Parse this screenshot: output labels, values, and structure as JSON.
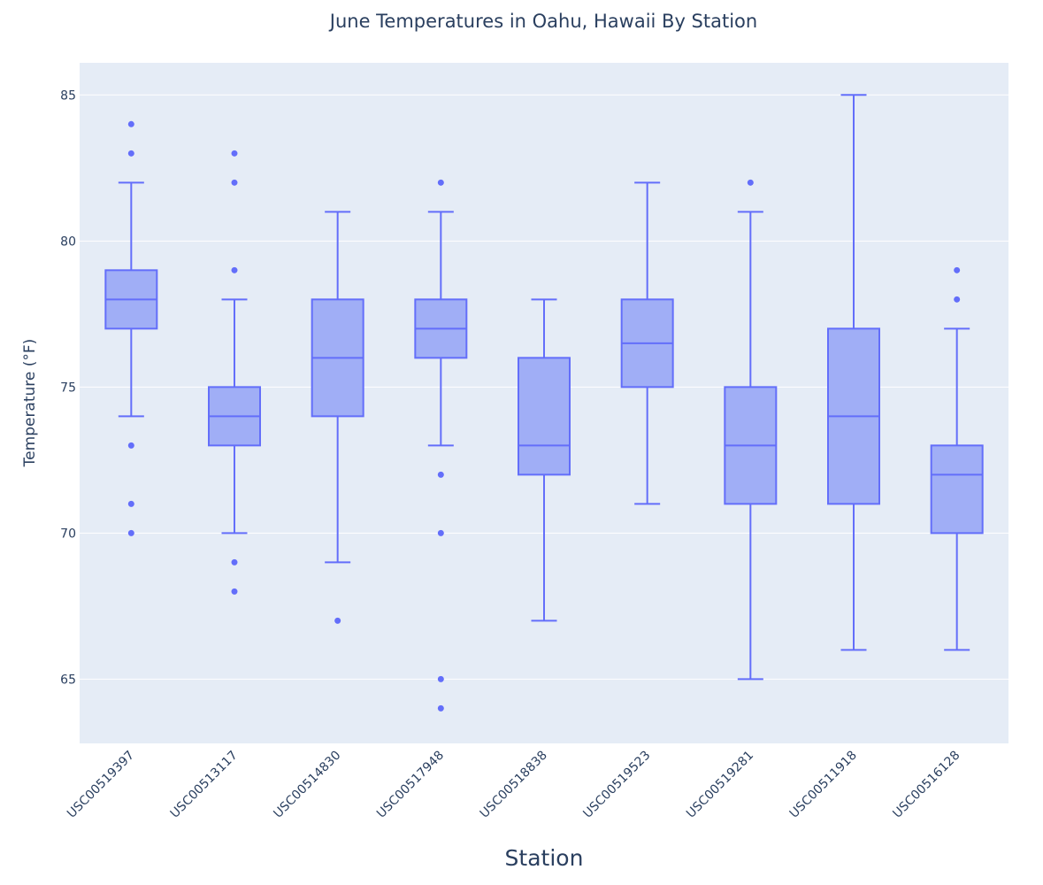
{
  "chart_data": {
    "type": "box",
    "title": "June Temperatures in Oahu, Hawaii By Station",
    "xlabel": "Station",
    "ylabel": "Temperature (°F)",
    "ylim": [
      62.8,
      86.1
    ],
    "yticks": [
      65,
      70,
      75,
      80,
      85
    ],
    "grid": true,
    "colors": {
      "box_line": "#636efa",
      "box_fill": "#a0aef6",
      "plot_bg": "#e5ecf6",
      "grid": "#ffffff",
      "text": "#2a3f5f"
    },
    "categories": [
      "USC00519397",
      "USC00513117",
      "USC00514830",
      "USC00517948",
      "USC00518838",
      "USC00519523",
      "USC00519281",
      "USC00511918",
      "USC00516128"
    ],
    "boxes": [
      {
        "station": "USC00519397",
        "lower_whisker": 74,
        "q1": 77,
        "median": 78,
        "q3": 79,
        "upper_whisker": 82,
        "outliers": [
          84,
          83,
          73,
          71,
          70
        ]
      },
      {
        "station": "USC00513117",
        "lower_whisker": 70,
        "q1": 73,
        "median": 74,
        "q3": 75,
        "upper_whisker": 78,
        "outliers": [
          83,
          82,
          79,
          69,
          68
        ]
      },
      {
        "station": "USC00514830",
        "lower_whisker": 69,
        "q1": 74,
        "median": 76,
        "q3": 78,
        "upper_whisker": 81,
        "outliers": [
          67
        ]
      },
      {
        "station": "USC00517948",
        "lower_whisker": 73,
        "q1": 76,
        "median": 77,
        "q3": 78,
        "upper_whisker": 81,
        "outliers": [
          82,
          72,
          70,
          65,
          64
        ]
      },
      {
        "station": "USC00518838",
        "lower_whisker": 67,
        "q1": 72,
        "median": 73,
        "q3": 76,
        "upper_whisker": 78,
        "outliers": []
      },
      {
        "station": "USC00519523",
        "lower_whisker": 71,
        "q1": 75,
        "median": 76.5,
        "q3": 78,
        "upper_whisker": 82,
        "outliers": []
      },
      {
        "station": "USC00519281",
        "lower_whisker": 65,
        "q1": 71,
        "median": 73,
        "q3": 75,
        "upper_whisker": 81,
        "outliers": [
          82
        ]
      },
      {
        "station": "USC00511918",
        "lower_whisker": 66,
        "q1": 71,
        "median": 74,
        "q3": 77,
        "upper_whisker": 85,
        "outliers": []
      },
      {
        "station": "USC00516128",
        "lower_whisker": 66,
        "q1": 70,
        "median": 72,
        "q3": 73,
        "upper_whisker": 77,
        "outliers": [
          79,
          78
        ]
      }
    ]
  }
}
